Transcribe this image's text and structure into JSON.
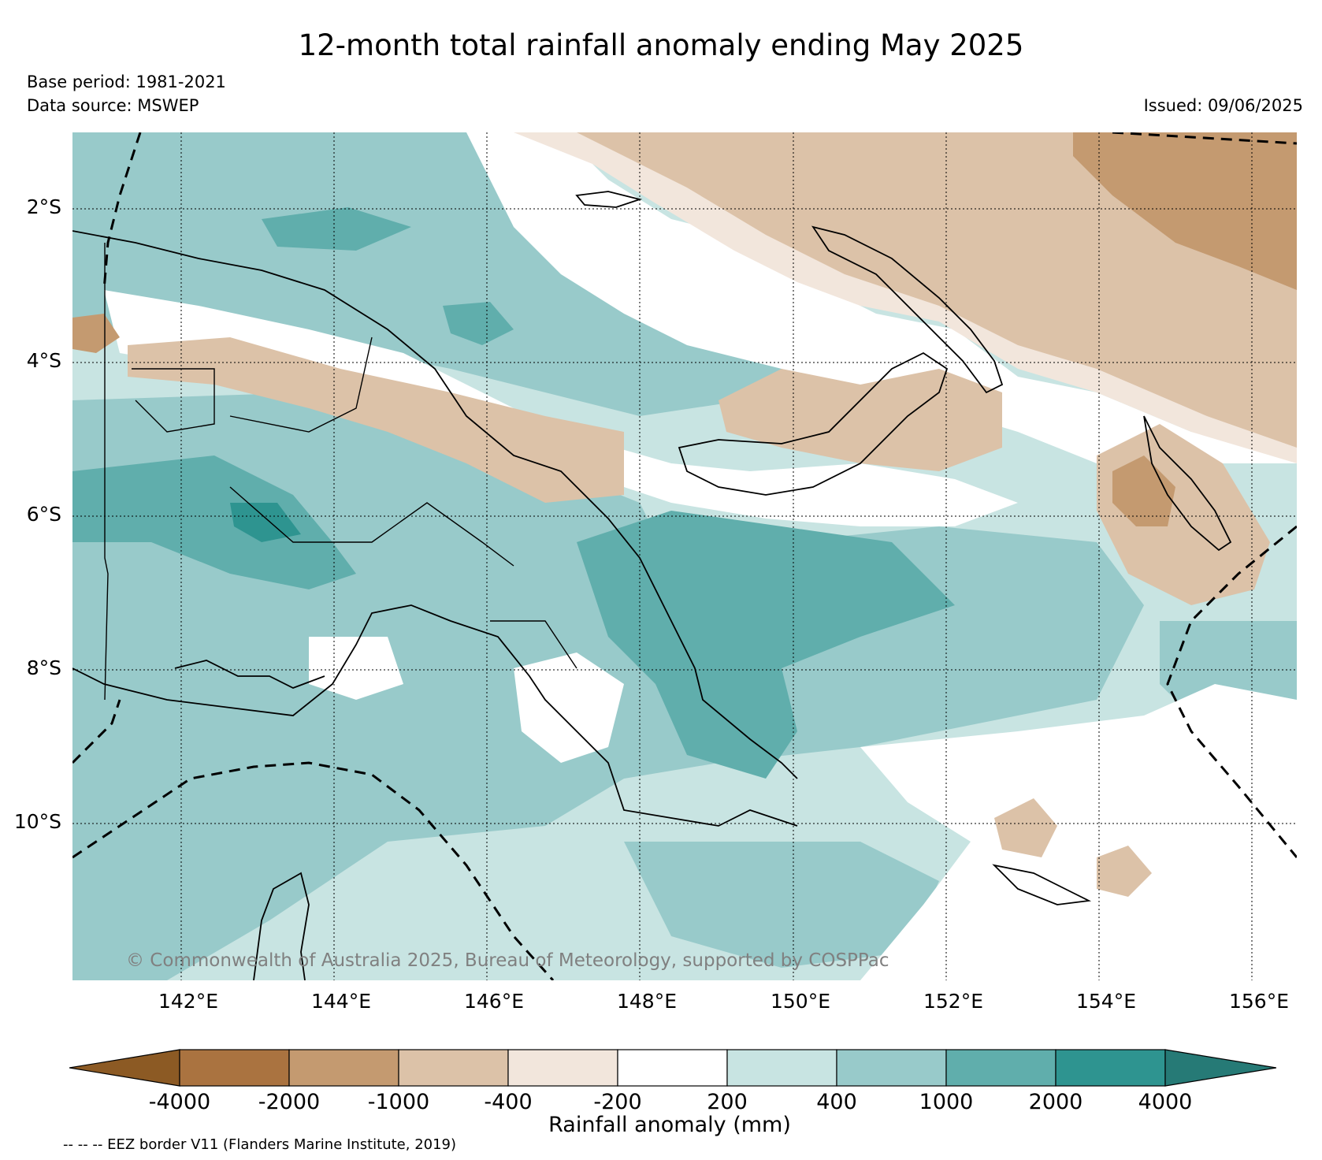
{
  "title": "12-month total rainfall anomaly ending May 2025",
  "base_period": "Base period: 1981-2021",
  "data_source": "Data source: MSWEP",
  "issued": "Issued: 09/06/2025",
  "map": {
    "lat_labels": [
      "2°S",
      "4°S",
      "6°S",
      "8°S",
      "10°S"
    ],
    "lat_values": [
      -2,
      -4,
      -6,
      -8,
      -10
    ],
    "lon_labels": [
      "142°E",
      "144°E",
      "146°E",
      "148°E",
      "150°E",
      "152°E",
      "154°E",
      "156°E"
    ],
    "lon_values": [
      142,
      144,
      146,
      148,
      150,
      152,
      154,
      156
    ],
    "lon_range": [
      140.4,
      156.5
    ],
    "lat_range": [
      -11.7,
      -1.0
    ],
    "copyright": "© Commonwealth of Australia 2025, Bureau of Meteorology, supported by COSPPac"
  },
  "colorbar": {
    "tick_labels": [
      "-4000",
      "-2000",
      "-1000",
      "-400",
      "-200",
      "200",
      "400",
      "1000",
      "2000",
      "4000"
    ],
    "colors": [
      "#8c5a24",
      "#aa7340",
      "#c49a70",
      "#dcc2a8",
      "#f2e6dc",
      "#ffffff",
      "#c8e4e2",
      "#98caca",
      "#60aeac",
      "#2e9490",
      "#267a76"
    ],
    "label": "Rainfall anomaly (mm)"
  },
  "eez_note": "-- -- -- EEZ border V11 (Flanders Marine Institute, 2019)"
}
